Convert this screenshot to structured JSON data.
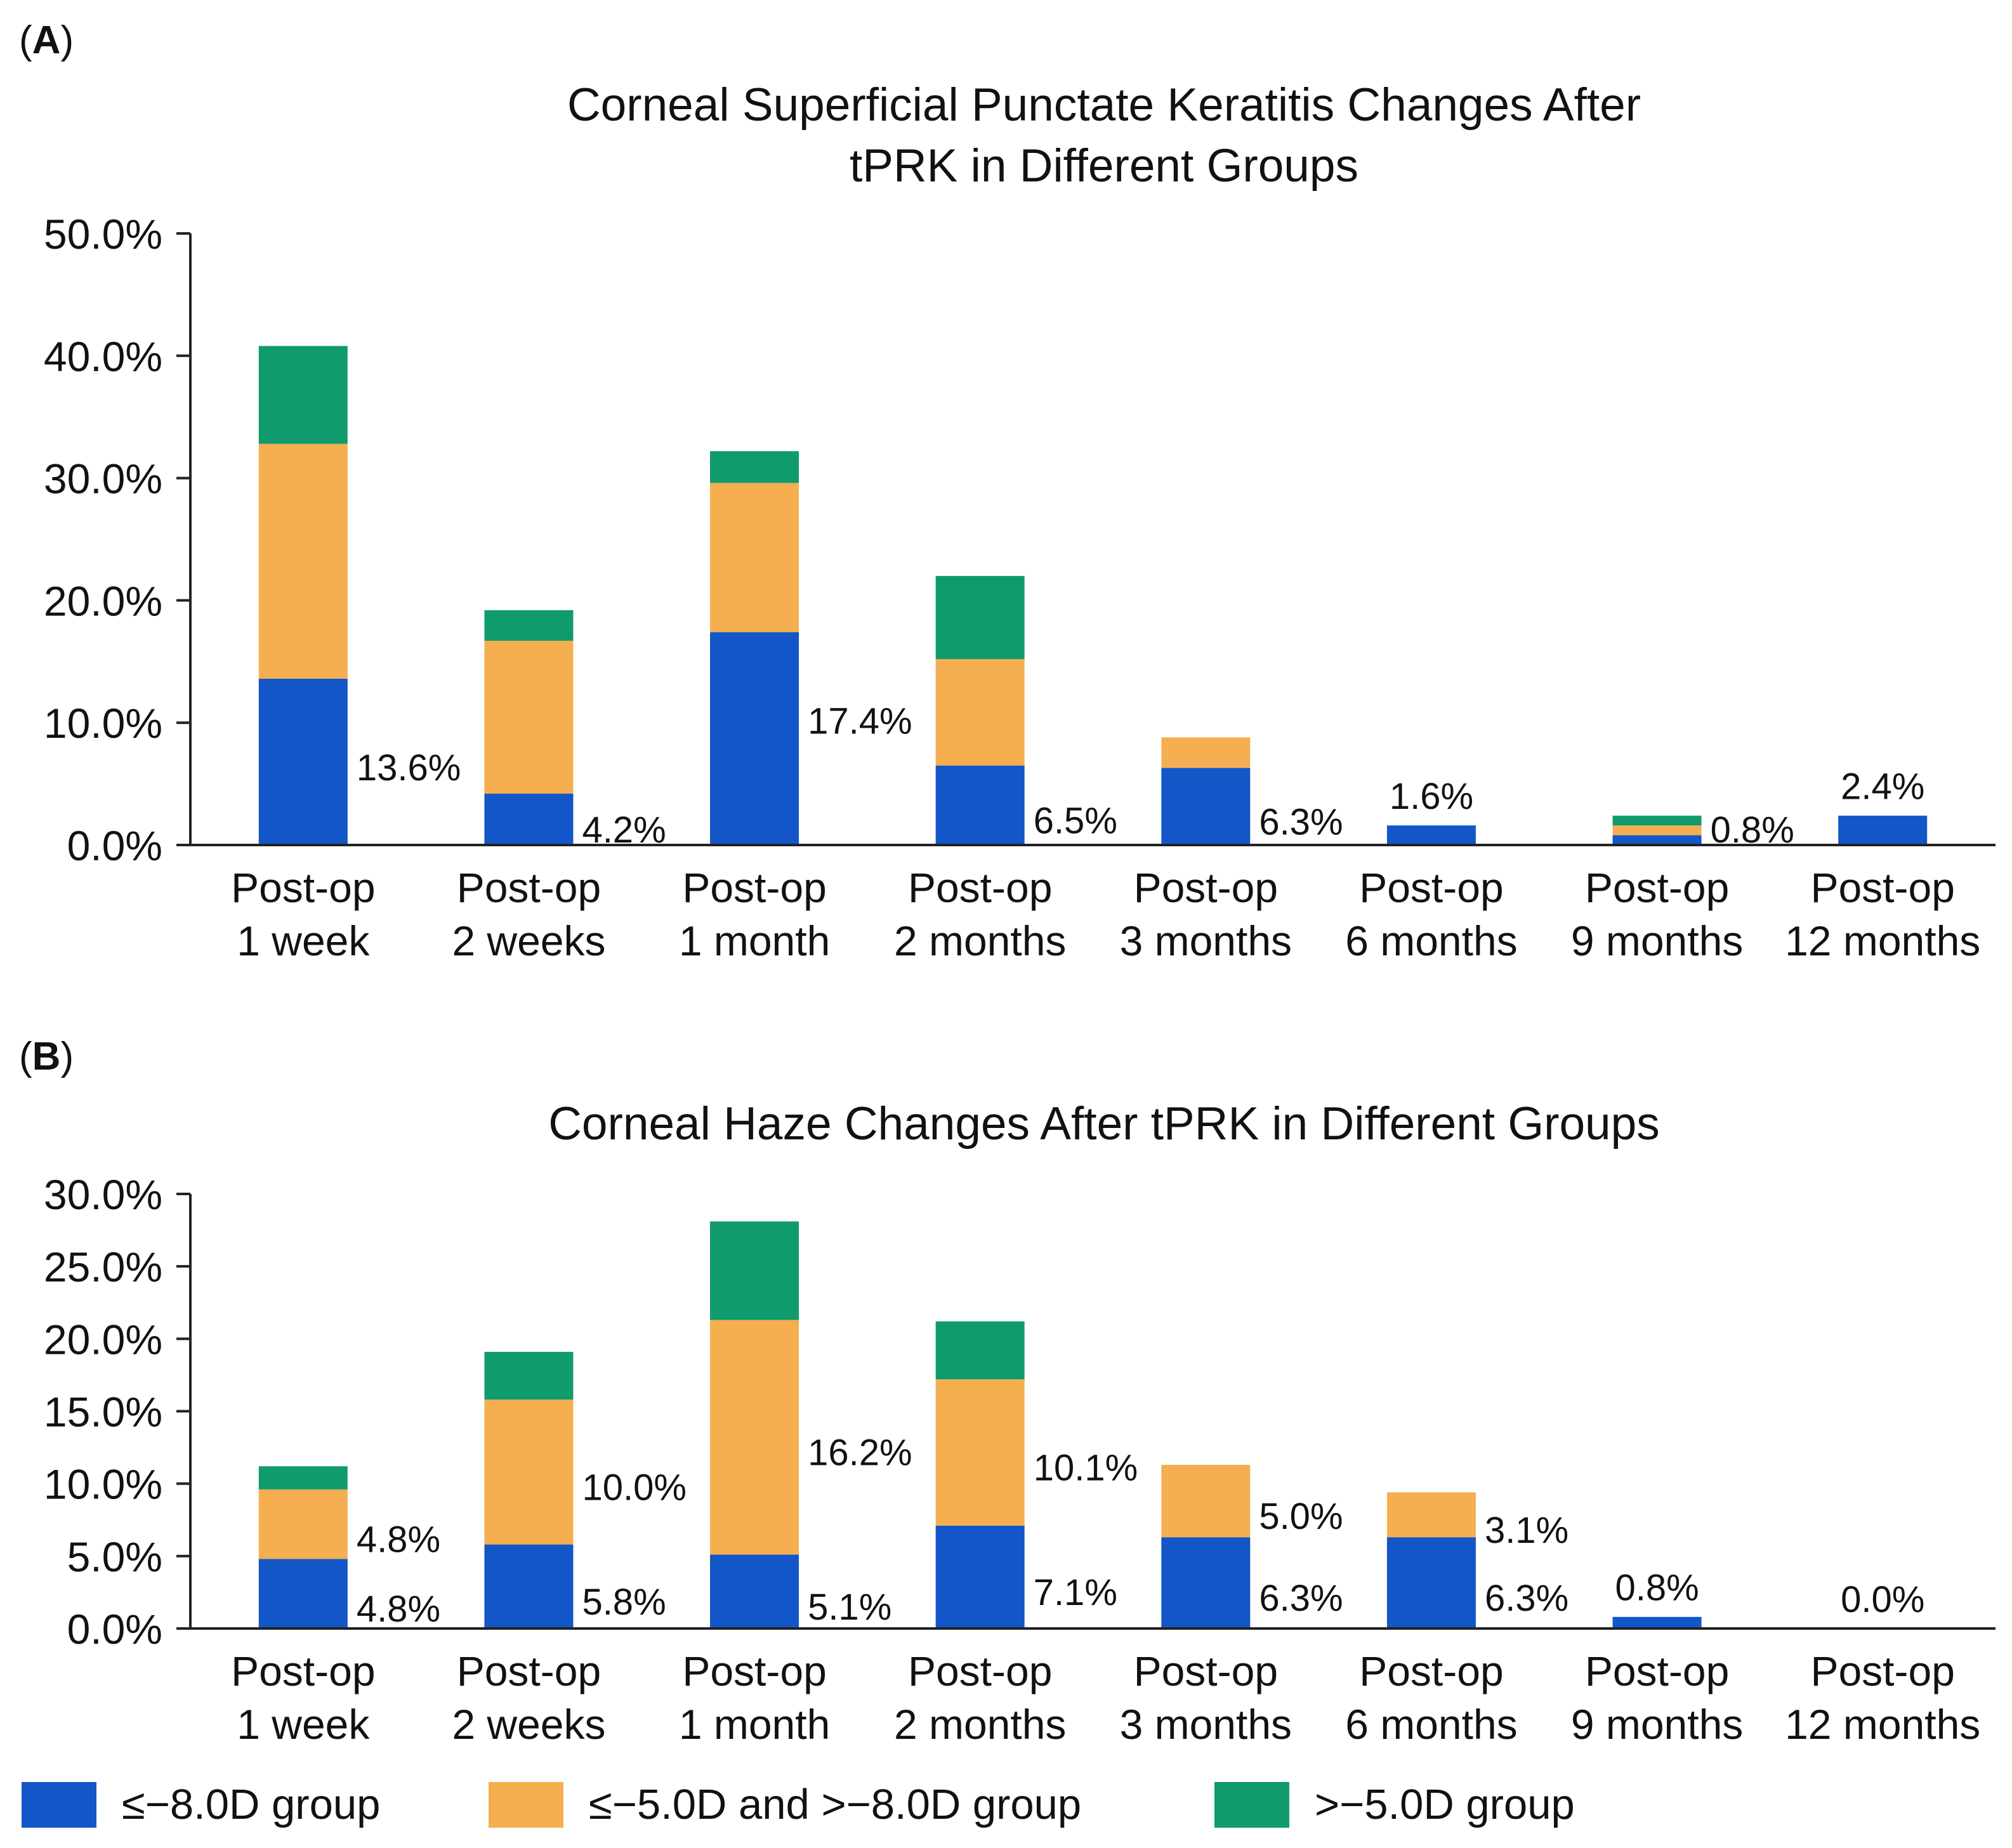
{
  "figure": {
    "panel_a_label": "A",
    "panel_b_label": "B"
  },
  "colors": {
    "le_minus_8": "#1256C8",
    "between": "#F5AE50",
    "gt_minus_5": "#109B6D",
    "axis": "#222222",
    "text": "#111111"
  },
  "legend": {
    "items": [
      {
        "label": "≤−8.0D group",
        "color": "#1256C8"
      },
      {
        "label": "≤−5.0D and >−8.0D group",
        "color": "#F5AE50"
      },
      {
        "label": ">−5.0D group",
        "color": "#109B6D"
      }
    ]
  },
  "chart_data": [
    {
      "type": "bar",
      "stacked": true,
      "title_lines": [
        "Corneal Superficial Punctate Keratitis Changes After",
        "tPRK in Different Groups"
      ],
      "categories": [
        [
          "Post-op",
          "1 week"
        ],
        [
          "Post-op",
          "2 weeks"
        ],
        [
          "Post-op",
          "1 month"
        ],
        [
          "Post-op",
          "2 months"
        ],
        [
          "Post-op",
          "3 months"
        ],
        [
          "Post-op",
          "6 months"
        ],
        [
          "Post-op",
          "9 months"
        ],
        [
          "Post-op",
          "12 months"
        ]
      ],
      "ylim": [
        0,
        50
      ],
      "yticks": [
        0,
        10,
        20,
        30,
        40,
        50
      ],
      "ytick_labels": [
        "0.0%",
        "10.0%",
        "20.0%",
        "30.0%",
        "40.0%",
        "50.0%"
      ],
      "series": [
        {
          "name": "≤−8.0D group",
          "values": [
            13.6,
            4.2,
            17.4,
            6.5,
            6.3,
            1.6,
            0.8,
            2.4
          ]
        },
        {
          "name": "≤−5.0D and >−8.0D group",
          "values": [
            19.2,
            12.5,
            12.2,
            8.7,
            2.5,
            0,
            0.8,
            0
          ]
        },
        {
          "name": ">−5.0D group",
          "values": [
            8.0,
            2.5,
            2.6,
            6.8,
            0,
            0,
            0.8,
            0
          ]
        }
      ],
      "data_labels": [
        {
          "category": 0,
          "series": 0,
          "text": "13.6%",
          "pos": "right-top"
        },
        {
          "category": 1,
          "series": 0,
          "text": "4.2%",
          "pos": "right-mid"
        },
        {
          "category": 2,
          "series": 0,
          "text": "17.4%",
          "pos": "right-top"
        },
        {
          "category": 3,
          "series": 0,
          "text": "6.5%",
          "pos": "right-mid"
        },
        {
          "category": 4,
          "series": 0,
          "text": "6.3%",
          "pos": "right-mid"
        },
        {
          "category": 5,
          "series": 0,
          "text": "1.6%",
          "pos": "above"
        },
        {
          "category": 6,
          "series": 0,
          "text": "0.8%",
          "pos": "right-mid"
        },
        {
          "category": 7,
          "series": 0,
          "text": "2.4%",
          "pos": "above"
        }
      ]
    },
    {
      "type": "bar",
      "stacked": true,
      "title_lines": [
        "Corneal Haze Changes After tPRK in Different Groups"
      ],
      "categories": [
        [
          "Post-op",
          "1 week"
        ],
        [
          "Post-op",
          "2 weeks"
        ],
        [
          "Post-op",
          "1 month"
        ],
        [
          "Post-op",
          "2 months"
        ],
        [
          "Post-op",
          "3 months"
        ],
        [
          "Post-op",
          "6 months"
        ],
        [
          "Post-op",
          "9 months"
        ],
        [
          "Post-op",
          "12 months"
        ]
      ],
      "ylim": [
        0,
        30
      ],
      "yticks": [
        0,
        5,
        10,
        15,
        20,
        25,
        30
      ],
      "ytick_labels": [
        "0.0%",
        "5.0%",
        "10.0%",
        "15.0%",
        "20.0%",
        "25.0%",
        "30.0%"
      ],
      "series": [
        {
          "name": "≤−8.0D group",
          "values": [
            4.8,
            5.8,
            5.1,
            7.1,
            6.3,
            6.3,
            0.8,
            0.0
          ]
        },
        {
          "name": "≤−5.0D and >−8.0D group",
          "values": [
            4.8,
            10.0,
            16.2,
            10.1,
            5.0,
            3.1,
            0,
            0
          ]
        },
        {
          "name": ">−5.0D group",
          "values": [
            1.6,
            3.3,
            6.8,
            4.0,
            0,
            0,
            0,
            0
          ]
        }
      ],
      "data_labels": [
        {
          "category": 0,
          "series": 0,
          "text": "4.8%",
          "pos": "right-mid"
        },
        {
          "category": 0,
          "series": 1,
          "text": "4.8%",
          "pos": "right-mid"
        },
        {
          "category": 1,
          "series": 0,
          "text": "5.8%",
          "pos": "right-mid"
        },
        {
          "category": 1,
          "series": 1,
          "text": "10.0%",
          "pos": "right-mid"
        },
        {
          "category": 2,
          "series": 0,
          "text": "5.1%",
          "pos": "right-mid"
        },
        {
          "category": 2,
          "series": 1,
          "text": "16.2%",
          "pos": "right-mid"
        },
        {
          "category": 3,
          "series": 0,
          "text": "7.1%",
          "pos": "right-mid"
        },
        {
          "category": 3,
          "series": 1,
          "text": "10.1%",
          "pos": "right-mid"
        },
        {
          "category": 4,
          "series": 0,
          "text": "6.3%",
          "pos": "right-mid"
        },
        {
          "category": 4,
          "series": 1,
          "text": "5.0%",
          "pos": "right-mid"
        },
        {
          "category": 5,
          "series": 0,
          "text": "6.3%",
          "pos": "right-mid"
        },
        {
          "category": 5,
          "series": 1,
          "text": "3.1%",
          "pos": "right-mid"
        },
        {
          "category": 6,
          "series": 0,
          "text": "0.8%",
          "pos": "above"
        },
        {
          "category": 7,
          "series": 0,
          "text": "0.0%",
          "pos": "above"
        }
      ]
    }
  ]
}
